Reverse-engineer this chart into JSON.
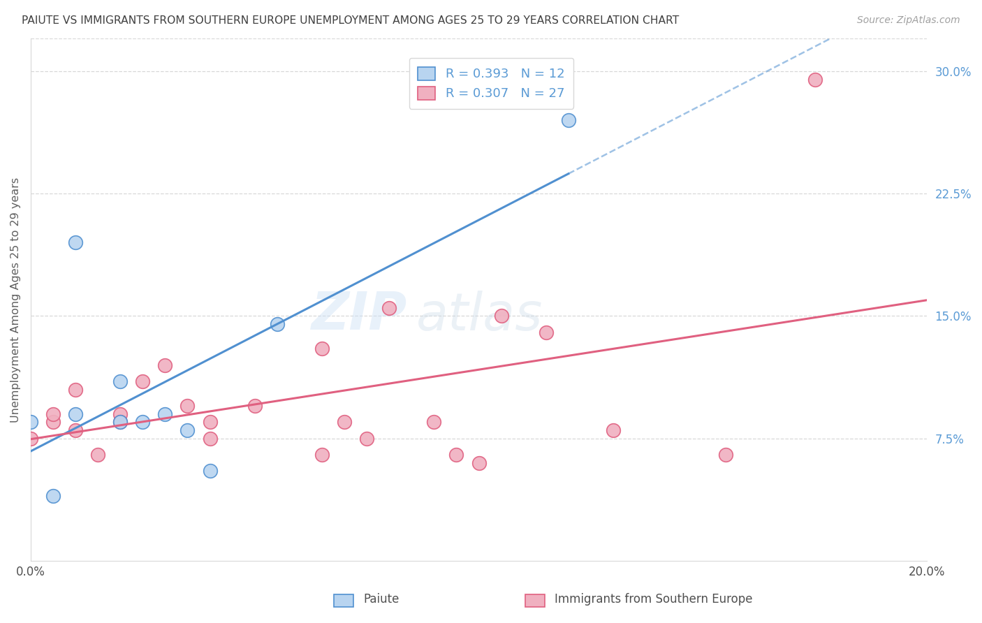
{
  "title": "PAIUTE VS IMMIGRANTS FROM SOUTHERN EUROPE UNEMPLOYMENT AMONG AGES 25 TO 29 YEARS CORRELATION CHART",
  "source": "Source: ZipAtlas.com",
  "ylabel": "Unemployment Among Ages 25 to 29 years",
  "xmin": 0.0,
  "xmax": 0.2,
  "ymin": 0.0,
  "ymax": 0.32,
  "xticks": [
    0.0,
    0.04,
    0.08,
    0.12,
    0.16,
    0.2
  ],
  "xticklabels": [
    "0.0%",
    "",
    "",
    "",
    "",
    "20.0%"
  ],
  "yticks_right": [
    0.075,
    0.15,
    0.225,
    0.3
  ],
  "yticklabels_right": [
    "7.5%",
    "15.0%",
    "22.5%",
    "30.0%"
  ],
  "legend_label1": "R = 0.393   N = 12",
  "legend_label2": "R = 0.307   N = 27",
  "legend_sublabel1": "Paiute",
  "legend_sublabel2": "Immigrants from Southern Europe",
  "color_blue": "#b8d4f0",
  "color_pink": "#f0b0c0",
  "color_blue_line": "#5090d0",
  "color_pink_line": "#e06080",
  "color_legend_text": "#5b9bd5",
  "color_grid": "#d8d8d8",
  "paiute_x": [
    0.0,
    0.005,
    0.01,
    0.01,
    0.02,
    0.02,
    0.025,
    0.03,
    0.035,
    0.04,
    0.055,
    0.12
  ],
  "paiute_y": [
    0.085,
    0.04,
    0.09,
    0.195,
    0.085,
    0.11,
    0.085,
    0.09,
    0.08,
    0.055,
    0.145,
    0.27
  ],
  "immigrants_x": [
    0.0,
    0.005,
    0.005,
    0.01,
    0.01,
    0.015,
    0.02,
    0.02,
    0.025,
    0.03,
    0.035,
    0.04,
    0.04,
    0.05,
    0.065,
    0.065,
    0.07,
    0.075,
    0.08,
    0.09,
    0.095,
    0.1,
    0.105,
    0.115,
    0.13,
    0.155,
    0.175
  ],
  "immigrants_y": [
    0.075,
    0.085,
    0.09,
    0.08,
    0.105,
    0.065,
    0.09,
    0.085,
    0.11,
    0.12,
    0.095,
    0.085,
    0.075,
    0.095,
    0.13,
    0.065,
    0.085,
    0.075,
    0.155,
    0.085,
    0.065,
    0.06,
    0.15,
    0.14,
    0.08,
    0.065,
    0.295
  ],
  "watermark_zip": "ZIP",
  "watermark_atlas": "atlas",
  "background_color": "#ffffff"
}
